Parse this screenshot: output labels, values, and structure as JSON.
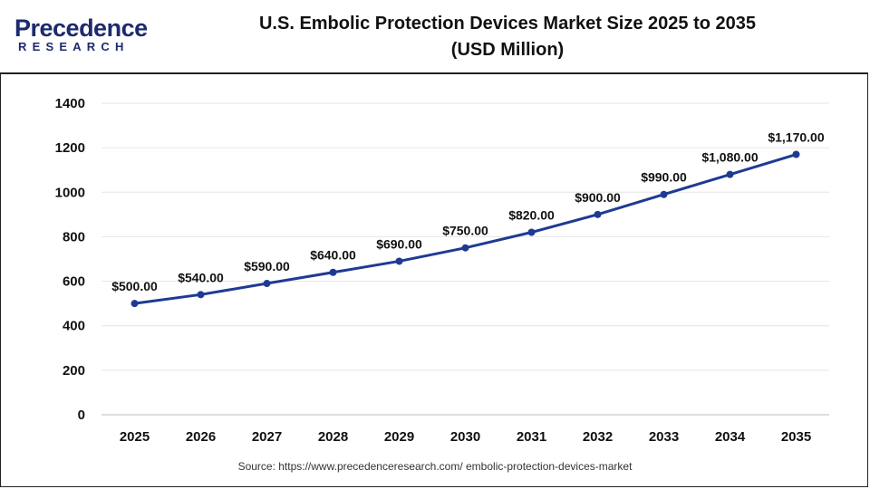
{
  "header": {
    "logo_main": "Precedence",
    "logo_sub": "RESEARCH",
    "title_line1": "U.S. Embolic Protection Devices Market Size 2025 to 2035",
    "title_line2": "(USD Million)"
  },
  "source_text": "Source: https://www.precedenceresearch.com/ embolic-protection-devices-market",
  "colors": {
    "line": "#1f3a93",
    "grid": "#e6e6e6",
    "logo": "#1d2a6e"
  },
  "chart_data": {
    "type": "line",
    "title": "U.S. Embolic Protection Devices Market Size 2025 to 2035 (USD Million)",
    "xlabel": "",
    "ylabel": "",
    "categories": [
      "2025",
      "2026",
      "2027",
      "2028",
      "2029",
      "2030",
      "2031",
      "2032",
      "2033",
      "2034",
      "2035"
    ],
    "series": [
      {
        "values": [
          500,
          540,
          590,
          640,
          690,
          750,
          820,
          900,
          990,
          1080,
          1170
        ]
      }
    ],
    "data_labels": [
      "$500.00",
      "$540.00",
      "$590.00",
      "$640.00",
      "$690.00",
      "$750.00",
      "$820.00",
      "$900.00",
      "$990.00",
      "$1,080.00",
      "$1,170.00"
    ],
    "ylim": [
      0,
      1400
    ],
    "yticks": [
      "0",
      "200",
      "400",
      "600",
      "800",
      "1000",
      "1200",
      "1400"
    ],
    "grid": true,
    "legend": "none"
  }
}
